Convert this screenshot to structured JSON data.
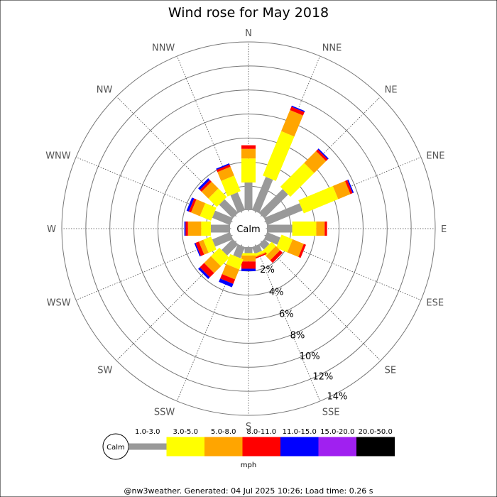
{
  "chart_data": {
    "type": "wind-rose",
    "title": "Wind rose for May 2018",
    "directions": [
      "N",
      "NNE",
      "NE",
      "ENE",
      "E",
      "ESE",
      "SE",
      "SSE",
      "S",
      "SSW",
      "SW",
      "WSW",
      "W",
      "WNW",
      "NW",
      "NNW"
    ],
    "ring_values": [
      2,
      4,
      6,
      8,
      10,
      12,
      14
    ],
    "ring_labels": [
      "2%",
      "4%",
      "6%",
      "8%",
      "10%",
      "12%",
      "14%"
    ],
    "r_max_percent": 14,
    "calm_label": "Calm",
    "unit_label": "mph",
    "speed_bins": [
      {
        "label": "1.0-3.0",
        "color": "#999999"
      },
      {
        "label": "3.0-5.0",
        "color": "#ffff00"
      },
      {
        "label": "5.0-8.0",
        "color": "#ffa500"
      },
      {
        "label": "8.0-11.0",
        "color": "#ff0000"
      },
      {
        "label": "11.0-15.0",
        "color": "#0000ff"
      },
      {
        "label": "15.0-20.0",
        "color": "#a020f0"
      },
      {
        "label": "20.0-50.0",
        "color": "#000000"
      }
    ],
    "series_cumulative_percent": {
      "N": [
        2.3,
        4.3,
        5.1,
        5.4,
        5.4,
        5.4,
        5.4
      ],
      "NNE": [
        3.0,
        7.0,
        8.9,
        9.2,
        9.3,
        9.3,
        9.3
      ],
      "NE": [
        2.8,
        5.6,
        7.0,
        7.2,
        7.3,
        7.3,
        7.3
      ],
      "ENE": [
        3.2,
        6.3,
        7.4,
        7.6,
        7.7,
        7.7,
        7.7
      ],
      "E": [
        2.1,
        4.1,
        4.8,
        5.0,
        5.0,
        5.0,
        5.0
      ],
      "ESE": [
        1.2,
        2.2,
        3.2,
        3.4,
        3.4,
        3.4,
        3.4
      ],
      "SE": [
        0.6,
        1.1,
        1.6,
        1.9,
        1.9,
        1.9,
        1.9
      ],
      "SSE": [
        0.6,
        0.8,
        0.9,
        1.0,
        1.0,
        1.0,
        1.0
      ],
      "S": [
        0.5,
        0.7,
        1.2,
        1.8,
        2.0,
        2.0,
        2.0
      ],
      "SSW": [
        1.0,
        1.9,
        2.8,
        3.2,
        3.5,
        3.5,
        3.5
      ],
      "SW": [
        1.3,
        2.3,
        3.1,
        3.6,
        3.8,
        3.8,
        3.8
      ],
      "WSW": [
        1.6,
        2.3,
        2.7,
        3.0,
        3.1,
        3.1,
        3.1
      ],
      "W": [
        1.6,
        2.4,
        3.5,
        3.7,
        3.8,
        3.8,
        3.8
      ],
      "WNW": [
        1.6,
        2.6,
        3.4,
        3.6,
        3.8,
        3.8,
        3.8
      ],
      "NW": [
        1.6,
        2.6,
        3.4,
        3.6,
        3.8,
        3.8,
        3.8
      ],
      "NNW": [
        1.6,
        3.0,
        3.8,
        4.0,
        4.1,
        4.1,
        4.1
      ]
    }
  },
  "footer": "@nw3weather. Generated: 04 Jul 2025 10:26; Load time: 0.26 s"
}
